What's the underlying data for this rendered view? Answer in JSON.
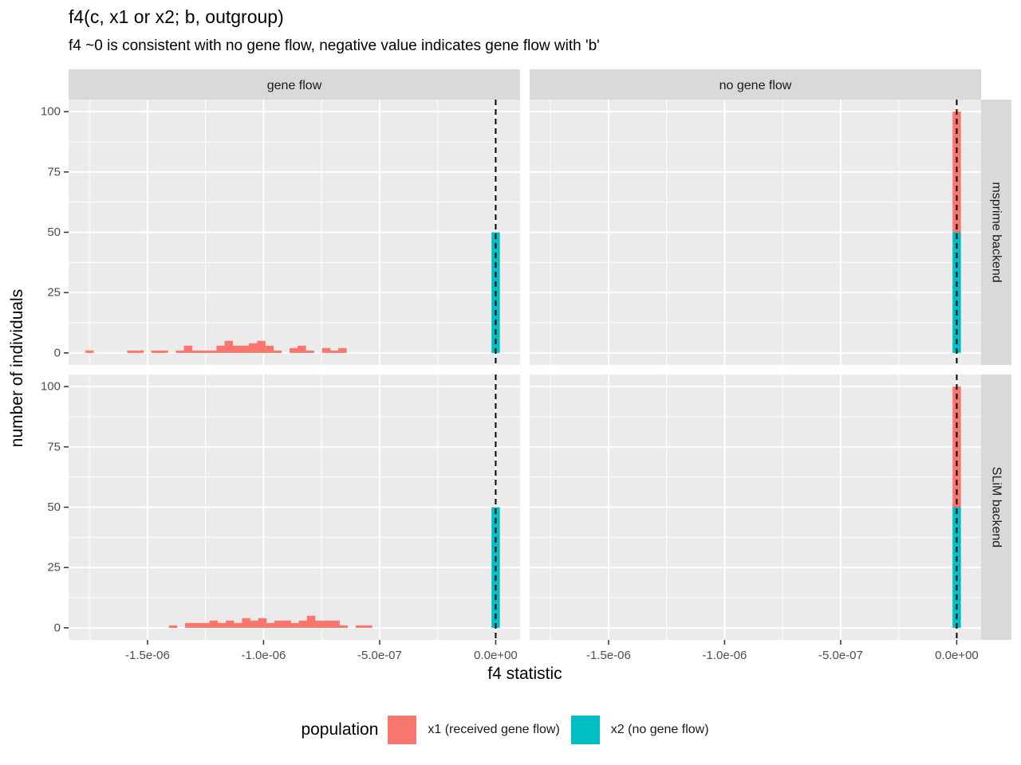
{
  "chart_data": {
    "type": "bar",
    "title": "f4(c, x1 or x2; b, outgroup)",
    "subtitle": "f4 ~0 is consistent with no gene flow, negative value indicates gene flow with 'b'",
    "xlabel": "f4 statistic",
    "ylabel": "number of individuals",
    "x_ticks": [
      -1.5e-06,
      -1e-06,
      -5e-07,
      0
    ],
    "x_tick_labels": [
      "-1.5e-06",
      "-1.0e-06",
      "-5.0e-07",
      "0.0e+00"
    ],
    "y_ticks": [
      0,
      25,
      50,
      75,
      100
    ],
    "y_tick_labels": [
      "0",
      "25",
      "50",
      "75",
      "100"
    ],
    "xlim": [
      -1.84e-06,
      1.05e-07
    ],
    "ylim": [
      -5,
      105
    ],
    "bin_width": 3.6e-08,
    "reference_line_x": 0,
    "grid": true,
    "legend_position": "bottom",
    "facet_columns": [
      "gene flow",
      "no gene flow"
    ],
    "facet_rows": [
      "msprime backend",
      "SLiM backend"
    ],
    "legend": {
      "title": "population",
      "items": [
        {
          "label": "x1 (received gene flow)",
          "color": "#F8766D"
        },
        {
          "label": "x2 (no gene flow)",
          "color": "#00BFC4"
        }
      ]
    },
    "panels": [
      {
        "column": "gene flow",
        "row": "msprime backend",
        "series": [
          {
            "name": "x1 (received gene flow)",
            "color": "#F8766D",
            "bins": [
              [
                -1.75e-06,
                1
              ],
              [
                -1.57e-06,
                1
              ],
              [
                -1.534e-06,
                1
              ],
              [
                -1.466e-06,
                1
              ],
              [
                -1.43e-06,
                1
              ],
              [
                -1.36e-06,
                1
              ],
              [
                -1.325e-06,
                3
              ],
              [
                -1.29e-06,
                1
              ],
              [
                -1.255e-06,
                1
              ],
              [
                -1.22e-06,
                1
              ],
              [
                -1.185e-06,
                3
              ],
              [
                -1.15e-06,
                5
              ],
              [
                -1.115e-06,
                3
              ],
              [
                -1.08e-06,
                3
              ],
              [
                -1.045e-06,
                4
              ],
              [
                -1.01e-06,
                5
              ],
              [
                -9.75e-07,
                3
              ],
              [
                -9.4e-07,
                1
              ],
              [
                -8.7e-07,
                2
              ],
              [
                -8.35e-07,
                3
              ],
              [
                -8e-07,
                1
              ],
              [
                -7.3e-07,
                2
              ],
              [
                -6.95e-07,
                1
              ],
              [
                -6.6e-07,
                2
              ]
            ]
          },
          {
            "name": "x2 (no gene flow)",
            "color": "#00BFC4",
            "bins": [
              [
                0,
                50
              ]
            ]
          }
        ]
      },
      {
        "column": "no gene flow",
        "row": "msprime backend",
        "series": [
          {
            "name": "x1 (received gene flow)",
            "color": "#F8766D",
            "bins": [
              [
                0,
                50
              ]
            ]
          },
          {
            "name": "x2 (no gene flow)",
            "color": "#00BFC4",
            "bins": [
              [
                0,
                50
              ]
            ]
          }
        ]
      },
      {
        "column": "gene flow",
        "row": "SLiM backend",
        "series": [
          {
            "name": "x1 (received gene flow)",
            "color": "#F8766D",
            "bins": [
              [
                -1.39e-06,
                1
              ],
              [
                -1.32e-06,
                2
              ],
              [
                -1.285e-06,
                2
              ],
              [
                -1.25e-06,
                2
              ],
              [
                -1.215e-06,
                3
              ],
              [
                -1.18e-06,
                2
              ],
              [
                -1.145e-06,
                3
              ],
              [
                -1.11e-06,
                2
              ],
              [
                -1.075e-06,
                4
              ],
              [
                -1.04e-06,
                3
              ],
              [
                -1.005e-06,
                4
              ],
              [
                -9.7e-07,
                2
              ],
              [
                -9.35e-07,
                3
              ],
              [
                -9e-07,
                3
              ],
              [
                -8.65e-07,
                2
              ],
              [
                -8.3e-07,
                3
              ],
              [
                -7.95e-07,
                5
              ],
              [
                -7.6e-07,
                3
              ],
              [
                -7.25e-07,
                3
              ],
              [
                -6.9e-07,
                3
              ],
              [
                -6.55e-07,
                1
              ],
              [
                -5.85e-07,
                1
              ],
              [
                -5.5e-07,
                1
              ]
            ]
          },
          {
            "name": "x2 (no gene flow)",
            "color": "#00BFC4",
            "bins": [
              [
                0,
                50
              ]
            ]
          }
        ]
      },
      {
        "column": "no gene flow",
        "row": "SLiM backend",
        "series": [
          {
            "name": "x1 (received gene flow)",
            "color": "#F8766D",
            "bins": [
              [
                0,
                50
              ]
            ]
          },
          {
            "name": "x2 (no gene flow)",
            "color": "#00BFC4",
            "bins": [
              [
                0,
                50
              ]
            ]
          }
        ]
      }
    ]
  }
}
